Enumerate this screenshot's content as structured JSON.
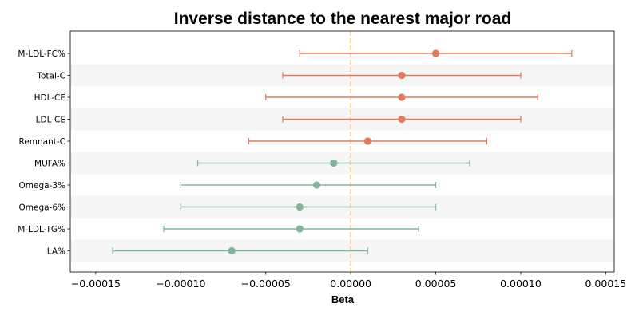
{
  "chart_data": {
    "type": "forest",
    "title": "Inverse distance to the nearest major road",
    "xlabel": "Beta",
    "ylabel": "",
    "xlim": [
      -0.000165,
      0.000155
    ],
    "xticks": [
      -0.00015,
      -0.0001,
      -5e-05,
      0.0,
      5e-05,
      0.0001,
      0.00015
    ],
    "xtick_labels": [
      "−0.00015",
      "−0.00010",
      "−0.00005",
      "0.00000",
      "0.00005",
      "0.00010",
      "0.00015"
    ],
    "reference_line": 0,
    "categories": [
      "M-LDL-FC%",
      "Total-C",
      "HDL-CE",
      "LDL-CE",
      "Remnant-C",
      "MUFA%",
      "Omega-3%",
      "Omega-6%",
      "M-LDL-TG%",
      "LA%"
    ],
    "estimates": [
      5e-05,
      3e-05,
      3e-05,
      3e-05,
      1e-05,
      -1e-05,
      -2e-05,
      -3e-05,
      -3e-05,
      -7e-05
    ],
    "ci_lower": [
      -3e-05,
      -4e-05,
      -5e-05,
      -4e-05,
      -6e-05,
      -9e-05,
      -0.0001,
      -0.0001,
      -0.00011,
      -0.00014
    ],
    "ci_upper": [
      0.00013,
      0.0001,
      0.00011,
      0.0001,
      8e-05,
      7e-05,
      5e-05,
      5e-05,
      4e-05,
      1e-05
    ],
    "grid": false,
    "colors": {
      "positive": "#e07b5e",
      "negative": "#82b59b",
      "reference": "#f5c97a",
      "band": "#f5f5f5"
    }
  }
}
